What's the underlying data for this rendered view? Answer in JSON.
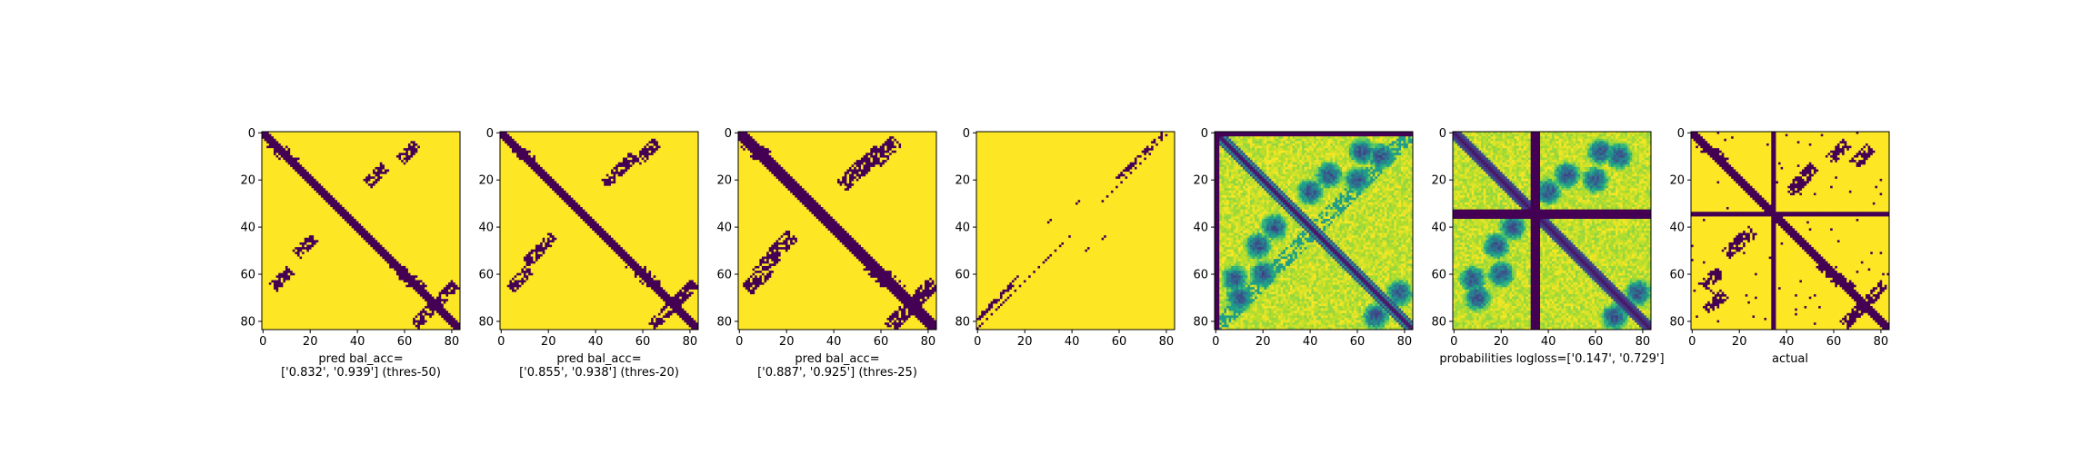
{
  "figure": {
    "colormap": "viridis",
    "colors": {
      "low": "#440154",
      "high": "#fde725",
      "axis": "#000000"
    }
  },
  "chart_data": [
    {
      "type": "heatmap",
      "variant": "binary",
      "label_lines": [
        "pred bal_acc=",
        "['0.832', '0.939'] (thres-50)"
      ],
      "xticks": [
        0,
        20,
        40,
        60,
        80
      ],
      "yticks": [
        0,
        20,
        40,
        60,
        80
      ],
      "xlim": [
        0,
        83
      ],
      "ylim": [
        83,
        0
      ],
      "n": 84,
      "diag_width": 2.0,
      "blob_radius": 2.3,
      "anti_diagonal_blobs": [
        [
          48,
          18
        ],
        [
          18,
          48
        ],
        [
          62,
          8
        ],
        [
          8,
          62
        ],
        [
          68,
          78
        ],
        [
          78,
          68
        ]
      ]
    },
    {
      "type": "heatmap",
      "variant": "binary",
      "label_lines": [
        "pred bal_acc=",
        "['0.855', '0.938'] (thres-20)"
      ],
      "xticks": [
        0,
        20,
        40,
        60,
        80
      ],
      "yticks": [
        0,
        20,
        40,
        60,
        80
      ],
      "xlim": [
        0,
        83
      ],
      "ylim": [
        83,
        0
      ],
      "n": 84,
      "diag_width": 2.2,
      "blob_radius": 2.6,
      "anti_diagonal_blobs": [
        [
          48,
          18
        ],
        [
          18,
          48
        ],
        [
          62,
          8
        ],
        [
          8,
          62
        ],
        [
          68,
          78
        ],
        [
          78,
          68
        ],
        [
          52,
          14
        ],
        [
          14,
          52
        ]
      ]
    },
    {
      "type": "heatmap",
      "variant": "binary",
      "label_lines": [
        "pred bal_acc=",
        "['0.887', '0.925'] (thres-25)"
      ],
      "xticks": [
        0,
        20,
        40,
        60,
        80
      ],
      "yticks": [
        0,
        20,
        40,
        60,
        80
      ],
      "xlim": [
        0,
        83
      ],
      "ylim": [
        83,
        0
      ],
      "n": 84,
      "diag_width": 3.0,
      "blob_radius": 3.0,
      "anti_diagonal_blobs": [
        [
          48,
          18
        ],
        [
          18,
          48
        ],
        [
          62,
          8
        ],
        [
          8,
          62
        ],
        [
          68,
          78
        ],
        [
          78,
          68
        ],
        [
          55,
          12
        ],
        [
          12,
          55
        ]
      ]
    },
    {
      "type": "heatmap",
      "variant": "sparse",
      "label_lines": [],
      "xticks": [
        0,
        20,
        40,
        60,
        80
      ],
      "yticks": [
        0,
        20,
        40,
        60,
        80
      ],
      "xlim": [
        0,
        83
      ],
      "ylim": [
        83,
        0
      ],
      "n": 84
    },
    {
      "type": "heatmap",
      "variant": "continuous",
      "label_lines": [],
      "xticks": [
        0,
        20,
        40,
        60,
        80
      ],
      "yticks": [
        0,
        20,
        40,
        60,
        80
      ],
      "xlim": [
        0,
        83
      ],
      "ylim": [
        83,
        0
      ],
      "n": 84
    },
    {
      "type": "heatmap",
      "variant": "probabilities",
      "label_lines": [
        "probabilities logloss=['0.147', '0.729']"
      ],
      "xticks": [
        0,
        20,
        40,
        60,
        80
      ],
      "yticks": [
        0,
        20,
        40,
        60,
        80
      ],
      "xlim": [
        0,
        83
      ],
      "ylim": [
        83,
        0
      ],
      "n": 84,
      "cross_index": 34
    },
    {
      "type": "heatmap",
      "variant": "actual",
      "label_lines": [
        "actual"
      ],
      "xticks": [
        0,
        20,
        40,
        60,
        80
      ],
      "yticks": [
        0,
        20,
        40,
        60,
        80
      ],
      "xlim": [
        0,
        83
      ],
      "ylim": [
        83,
        0
      ],
      "n": 84,
      "cross_index": 34
    }
  ]
}
